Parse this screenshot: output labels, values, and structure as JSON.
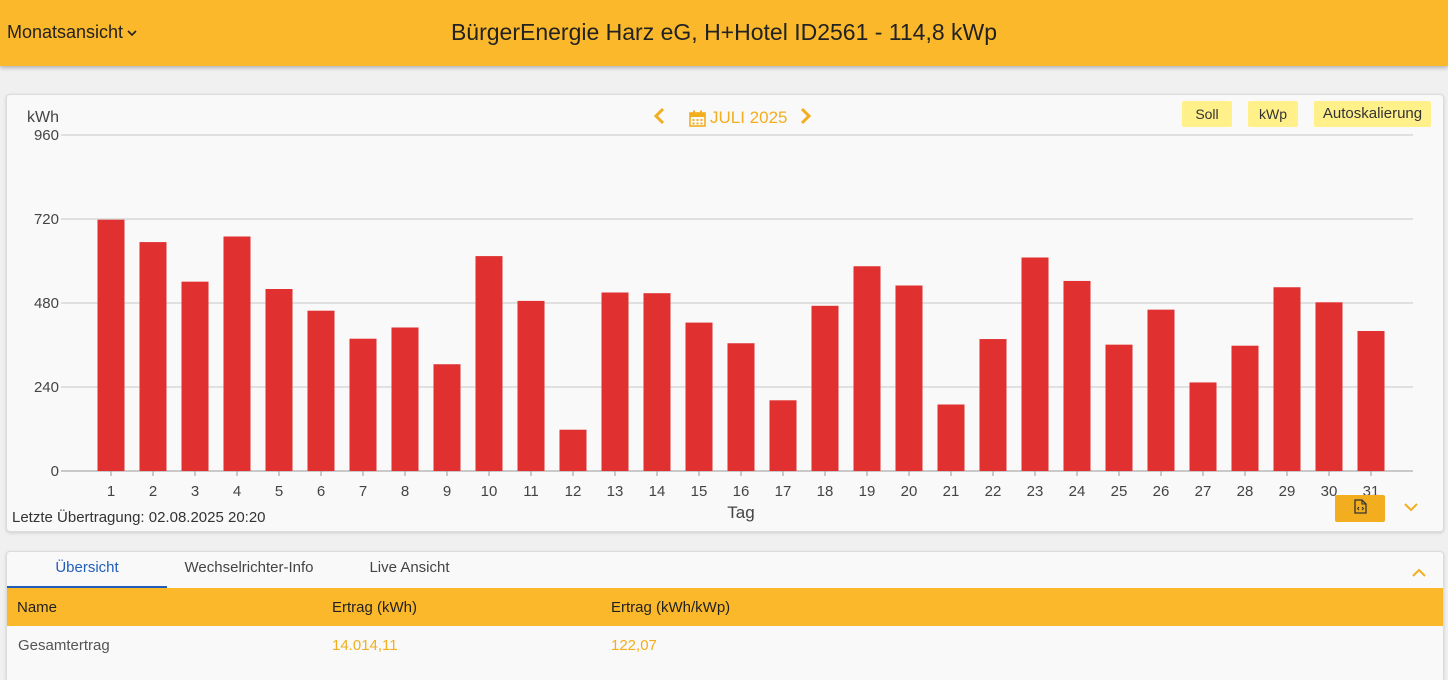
{
  "header": {
    "view_label": "Monatsansicht",
    "title": "BürgerEnergie Harz eG, H+Hotel ID2561 - 114,8 kWp"
  },
  "chart_panel": {
    "month_label": "JULI 2025",
    "buttons": {
      "soll": "Soll",
      "kwp": "kWp",
      "autoscale": "Autoskalierung"
    },
    "last_transfer": "Letzte Übertragung: 02.08.2025 20:20"
  },
  "chart_data": {
    "type": "bar",
    "ylabel": "kWh",
    "xlabel": "Tag",
    "ylim": [
      0,
      960
    ],
    "yticks": [
      0,
      240,
      480,
      720,
      960
    ],
    "grid": true,
    "bar_color": "#e03030",
    "categories": [
      "1",
      "2",
      "3",
      "4",
      "5",
      "6",
      "7",
      "8",
      "9",
      "10",
      "11",
      "12",
      "13",
      "14",
      "15",
      "16",
      "17",
      "18",
      "19",
      "20",
      "21",
      "22",
      "23",
      "24",
      "25",
      "26",
      "27",
      "28",
      "29",
      "30",
      "31"
    ],
    "values": [
      718,
      654,
      541,
      670,
      520,
      458,
      378,
      410,
      305,
      614,
      486,
      118,
      510,
      508,
      424,
      365,
      202,
      472,
      585,
      530,
      190,
      377,
      610,
      543,
      361,
      461,
      253,
      358,
      525,
      482,
      400
    ]
  },
  "tabs": [
    "Übersicht",
    "Wechselrichter-Info",
    "Live Ansicht"
  ],
  "table": {
    "headers": [
      "Name",
      "Ertrag (kWh)",
      "Ertrag (kWh/kWp)"
    ],
    "rows": [
      [
        "Gesamtertrag",
        "14.014,11",
        "122,07"
      ]
    ]
  },
  "colors": {
    "accent": "#fbb82b",
    "value_text": "#f2ae1e",
    "active_tab": "#1f5fb8"
  }
}
